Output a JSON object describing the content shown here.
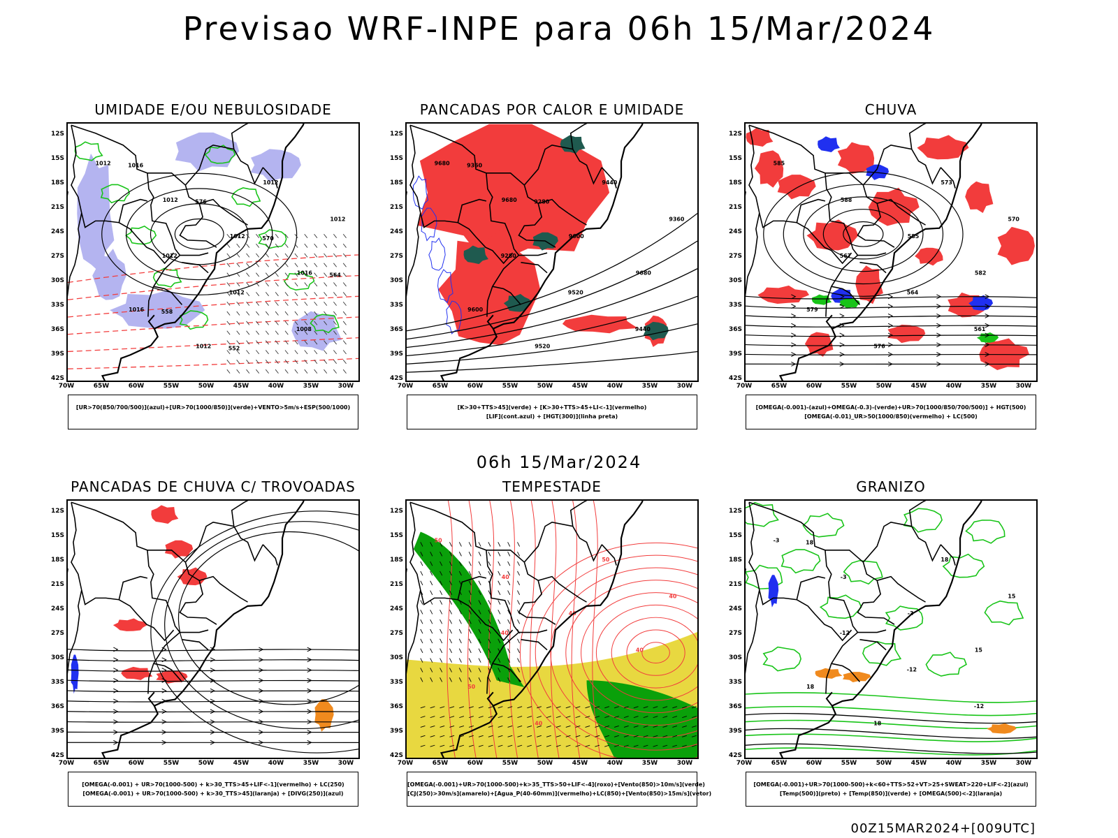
{
  "header": {
    "title": "Previsao WRF-INPE  para 06h 15/Mar/2024",
    "subtitle": "06h 15/Mar/2024",
    "footer": "00Z15MAR2024+[009UTC]"
  },
  "axes": {
    "lat": [
      "12S",
      "15S",
      "18S",
      "21S",
      "24S",
      "27S",
      "30S",
      "33S",
      "36S",
      "39S",
      "42S"
    ],
    "lon": [
      "70W",
      "65W",
      "60W",
      "55W",
      "50W",
      "45W",
      "40W",
      "35W",
      "30W"
    ]
  },
  "panels": [
    {
      "id": "umidade",
      "title": "UMIDADE E/OU NEBULOSIDADE",
      "legend": [
        "[UR>70(850/700/500)](azul)+[UR>70(1000/850)](verde)+VENTO>5m/s+ESP(500/1000)"
      ],
      "contour_labels": [
        "1012",
        "1012",
        "1012",
        "1016",
        "1016",
        "1012",
        "1012",
        "1012",
        "1012",
        "1012",
        "1008",
        "1016",
        "576",
        "570",
        "564",
        "558",
        "552"
      ]
    },
    {
      "id": "pancadas",
      "title": "PANCADAS POR CALOR E UMIDADE",
      "legend": [
        "[K>30+TTS>45](verde) + [K>30+TTS>45+LI<-1](vermelho)",
        "[LIF](cont.azul) + [HGT(300)](linha preta)"
      ],
      "contour_labels": [
        "9680",
        "9680",
        "9600",
        "9680",
        "9600",
        "9520",
        "9440",
        "9360",
        "9280",
        "9520",
        "9440",
        "9360",
        "9280"
      ]
    },
    {
      "id": "chuva",
      "title": "CHUVA",
      "legend": [
        "[OMEGA(-0.001)-(azul)+OMEGA(-0.3)-(verde)+UR>70(1000/850/700/500)] + HGT(500)",
        "[OMEGA(-0.01)_UR>50(1000/850)(vermelho) + LC(500)"
      ],
      "contour_labels": [
        "585",
        "588",
        "585",
        "582",
        "579",
        "576",
        "573",
        "570",
        "567",
        "564",
        "561"
      ]
    },
    {
      "id": "trovoadas",
      "title": "PANCADAS DE CHUVA C/ TROVOADAS",
      "legend": [
        "[OMEGA(-0.001) + UR>70(1000-500) + k>30_TTS>45+LIF<-1](vermelho) + LC(250)",
        "[OMEGA(-0.001) + UR>70(1000-500) + k>30_TTS>45](laranja) + [DIVG(250)](azul)"
      ],
      "contour_labels": []
    },
    {
      "id": "tempestade",
      "title": "TEMPESTADE",
      "legend": [
        "[OMEGA(-0.001)+UR>70(1000-500)+k>35_TTS>50+LIF<-4](roxo)+[Vento(850)>10m/s](verde)",
        "[CJ(250)>30m/s](amarelo)+[Agua_P(40-60mm)](vermelho)+LC(850)+[Vento(850)>15m/s](vetor)"
      ],
      "contour_labels": [
        "50",
        "40",
        "40",
        "40",
        "50",
        "40",
        "50",
        "40",
        "40"
      ]
    },
    {
      "id": "granizo",
      "title": "GRANIZO",
      "legend": [
        "[OMEGA(-0.001)+UR>70(1000-500)+k<60+TTS>52+VT>25+SWEAT>220+LIF<-2](azul)",
        "[Temp(500)](preto) + [Temp(850)](verde) + [OMEGA(500)<-2](laranja)"
      ],
      "contour_labels": [
        "-3",
        "-3",
        "-3",
        "15",
        "18",
        "18",
        "18",
        "15",
        "-12",
        "-12",
        "-12",
        "18"
      ]
    }
  ],
  "colors": {
    "red": "#f23c3c",
    "green": "#18c418",
    "blue": "#2030f0",
    "lavender": "#b4b4f0",
    "darkteal": "#1f5a4f",
    "yellow": "#e8d840",
    "orange": "#f08a1e",
    "dkgreen": "#0aa00a"
  }
}
